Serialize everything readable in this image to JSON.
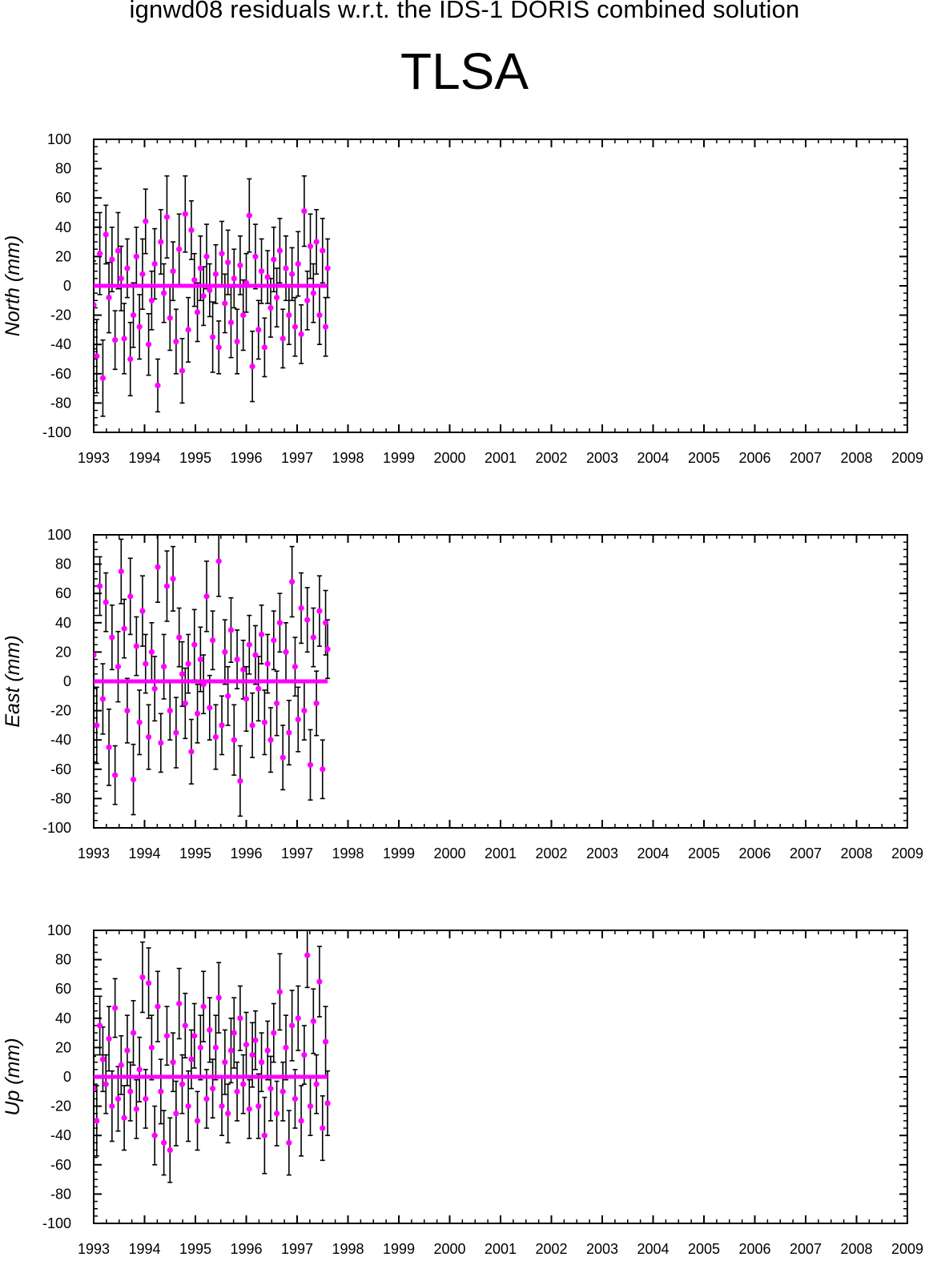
{
  "figure": {
    "title": "ignwd08 residuals w.r.t. the IDS-1 DORIS combined solution",
    "station": "TLSA"
  },
  "style": {
    "point_color": "#ff00ff",
    "errorbar_color": "#000000",
    "axis_color": "#000000",
    "background": "#ffffff"
  },
  "chart_data": [
    {
      "type": "scatter",
      "panel": "north",
      "title": "",
      "xlabel": "",
      "ylabel": "North (mm)",
      "xlim": [
        1993,
        2009
      ],
      "ylim": [
        -100,
        100
      ],
      "x_ticks": [
        1993,
        1994,
        1995,
        1996,
        1997,
        1998,
        1999,
        2000,
        2001,
        2002,
        2003,
        2004,
        2005,
        2006,
        2007,
        2008,
        2009
      ],
      "y_ticks": [
        -100,
        -80,
        -60,
        -40,
        -20,
        0,
        20,
        40,
        60,
        80,
        100
      ],
      "grid": false,
      "legend": "none",
      "series": [
        {
          "x": [
            1993.0,
            1993.06,
            1993.12,
            1993.18,
            1993.24,
            1993.3,
            1993.36,
            1993.42,
            1993.48,
            1993.54,
            1993.6,
            1993.66,
            1993.72,
            1993.78,
            1993.84,
            1993.9,
            1993.96,
            1994.02,
            1994.08,
            1994.14,
            1994.2,
            1994.26,
            1994.32,
            1994.38,
            1994.44,
            1994.5,
            1994.56,
            1994.62,
            1994.68,
            1994.74,
            1994.8,
            1994.86,
            1994.92,
            1994.98,
            1995.04,
            1995.1,
            1995.16,
            1995.22,
            1995.28,
            1995.34,
            1995.4,
            1995.46,
            1995.52,
            1995.58,
            1995.64,
            1995.7,
            1995.76,
            1995.82,
            1995.88,
            1995.94,
            1996.0,
            1996.06,
            1996.12,
            1996.18,
            1996.24,
            1996.3,
            1996.36,
            1996.42,
            1996.48,
            1996.54,
            1996.6,
            1996.66,
            1996.72,
            1996.78,
            1996.84,
            1996.9,
            1996.96,
            1997.02,
            1997.08,
            1997.14,
            1997.2,
            1997.26,
            1997.32,
            1997.38,
            1997.44,
            1997.5,
            1997.56,
            1997.6
          ],
          "y": [
            -13,
            -48,
            22,
            -63,
            35,
            -8,
            18,
            -37,
            24,
            5,
            -36,
            12,
            -50,
            -20,
            20,
            -28,
            8,
            44,
            -40,
            -10,
            15,
            -68,
            30,
            -5,
            47,
            -22,
            10,
            -38,
            25,
            -58,
            49,
            -30,
            38,
            4,
            -18,
            12,
            -7,
            20,
            -3,
            -35,
            8,
            -42,
            22,
            -12,
            16,
            -25,
            5,
            -38,
            14,
            -20,
            2,
            48,
            -55,
            20,
            -30,
            10,
            -42,
            6,
            -15,
            18,
            -8,
            24,
            -36,
            12,
            -20,
            8,
            -28,
            15,
            -33,
            51,
            -10,
            27,
            -5,
            30,
            -20,
            24,
            -28,
            12
          ],
          "err": [
            30,
            25,
            28,
            26,
            20,
            24,
            22,
            20,
            26,
            22,
            24,
            20,
            25,
            22,
            20,
            22,
            24,
            22,
            21,
            20,
            24,
            18,
            22,
            20,
            28,
            22,
            20,
            22,
            24,
            22,
            26,
            22,
            20,
            18,
            20,
            22,
            20,
            22,
            18,
            24,
            20,
            18,
            22,
            20,
            22,
            24,
            20,
            22,
            20,
            24,
            20,
            25,
            24,
            22,
            20,
            22,
            20,
            18,
            20,
            22,
            20,
            22,
            20,
            22,
            20,
            18,
            20,
            22,
            20,
            24,
            20,
            22,
            20,
            22,
            20,
            22,
            20,
            20
          ],
          "mean_line": 0
        }
      ]
    },
    {
      "type": "scatter",
      "panel": "east",
      "title": "",
      "xlabel": "",
      "ylabel": "East (mm)",
      "xlim": [
        1993,
        2009
      ],
      "ylim": [
        -100,
        100
      ],
      "x_ticks": [
        1993,
        1994,
        1995,
        1996,
        1997,
        1998,
        1999,
        2000,
        2001,
        2002,
        2003,
        2004,
        2005,
        2006,
        2007,
        2008,
        2009
      ],
      "y_ticks": [
        -100,
        -80,
        -60,
        -40,
        -20,
        0,
        20,
        40,
        60,
        80,
        100
      ],
      "grid": false,
      "legend": "none",
      "series": [
        {
          "x": [
            1993.0,
            1993.06,
            1993.12,
            1993.18,
            1993.24,
            1993.3,
            1993.36,
            1993.42,
            1993.48,
            1993.54,
            1993.6,
            1993.66,
            1993.72,
            1993.78,
            1993.84,
            1993.9,
            1993.96,
            1994.02,
            1994.08,
            1994.14,
            1994.2,
            1994.26,
            1994.32,
            1994.38,
            1994.44,
            1994.5,
            1994.56,
            1994.62,
            1994.68,
            1994.74,
            1994.8,
            1994.86,
            1994.92,
            1994.98,
            1995.04,
            1995.1,
            1995.16,
            1995.22,
            1995.28,
            1995.34,
            1995.4,
            1995.46,
            1995.52,
            1995.58,
            1995.64,
            1995.7,
            1995.76,
            1995.82,
            1995.88,
            1995.94,
            1996.0,
            1996.06,
            1996.12,
            1996.18,
            1996.24,
            1996.3,
            1996.36,
            1996.42,
            1996.48,
            1996.54,
            1996.6,
            1996.66,
            1996.72,
            1996.78,
            1996.84,
            1996.9,
            1996.96,
            1997.02,
            1997.08,
            1997.14,
            1997.2,
            1997.26,
            1997.32,
            1997.38,
            1997.44,
            1997.5,
            1997.56,
            1997.6
          ],
          "y": [
            18,
            -30,
            65,
            -12,
            54,
            -45,
            30,
            -64,
            10,
            75,
            36,
            -20,
            58,
            -67,
            24,
            -28,
            48,
            12,
            -38,
            20,
            -5,
            78,
            -42,
            10,
            65,
            -20,
            70,
            -35,
            30,
            5,
            -15,
            12,
            -48,
            25,
            -22,
            15,
            -2,
            58,
            -18,
            28,
            -38,
            82,
            -30,
            20,
            -10,
            35,
            -40,
            15,
            -68,
            8,
            -12,
            25,
            -30,
            18,
            -5,
            32,
            -28,
            12,
            -40,
            28,
            -15,
            40,
            -52,
            20,
            -35,
            68,
            10,
            -26,
            50,
            -20,
            42,
            -57,
            30,
            -15,
            48,
            -60,
            40,
            22
          ],
          "err": [
            22,
            26,
            20,
            24,
            20,
            26,
            22,
            20,
            24,
            22,
            20,
            22,
            26,
            24,
            20,
            22,
            24,
            20,
            22,
            20,
            22,
            24,
            20,
            22,
            24,
            20,
            22,
            24,
            20,
            22,
            24,
            20,
            22,
            24,
            20,
            22,
            20,
            24,
            22,
            20,
            22,
            24,
            20,
            22,
            20,
            22,
            24,
            20,
            24,
            20,
            22,
            20,
            22,
            20,
            22,
            20,
            22,
            20,
            22,
            20,
            22,
            20,
            22,
            20,
            22,
            24,
            20,
            22,
            24,
            20,
            22,
            24,
            20,
            22,
            24,
            20,
            22,
            20
          ],
          "mean_line": 0
        }
      ]
    },
    {
      "type": "scatter",
      "panel": "up",
      "title": "",
      "xlabel": "",
      "ylabel": "Up (mm)",
      "xlim": [
        1993,
        2009
      ],
      "ylim": [
        -100,
        100
      ],
      "x_ticks": [
        1993,
        1994,
        1995,
        1996,
        1997,
        1998,
        1999,
        2000,
        2001,
        2002,
        2003,
        2004,
        2005,
        2006,
        2007,
        2008,
        2009
      ],
      "y_ticks": [
        -100,
        -80,
        -60,
        -40,
        -20,
        0,
        20,
        40,
        60,
        80,
        100
      ],
      "grid": false,
      "legend": "none",
      "series": [
        {
          "x": [
            1993.0,
            1993.06,
            1993.12,
            1993.18,
            1993.24,
            1993.3,
            1993.36,
            1993.42,
            1993.48,
            1993.54,
            1993.6,
            1993.66,
            1993.72,
            1993.78,
            1993.84,
            1993.9,
            1993.96,
            1994.02,
            1994.08,
            1994.14,
            1994.2,
            1994.26,
            1994.32,
            1994.38,
            1994.44,
            1994.5,
            1994.56,
            1994.62,
            1994.68,
            1994.74,
            1994.8,
            1994.86,
            1994.92,
            1994.98,
            1995.04,
            1995.1,
            1995.16,
            1995.22,
            1995.28,
            1995.34,
            1995.4,
            1995.46,
            1995.52,
            1995.58,
            1995.64,
            1995.7,
            1995.76,
            1995.82,
            1995.88,
            1995.94,
            1996.0,
            1996.06,
            1996.12,
            1996.18,
            1996.24,
            1996.3,
            1996.36,
            1996.42,
            1996.48,
            1996.54,
            1996.6,
            1996.66,
            1996.72,
            1996.78,
            1996.84,
            1996.9,
            1996.96,
            1997.02,
            1997.08,
            1997.14,
            1997.2,
            1997.26,
            1997.32,
            1997.38,
            1997.44,
            1997.5,
            1997.56,
            1997.6
          ],
          "y": [
            -8,
            -30,
            35,
            12,
            -5,
            26,
            -20,
            47,
            -15,
            8,
            -28,
            18,
            -10,
            30,
            -22,
            5,
            68,
            -15,
            64,
            20,
            -40,
            48,
            -10,
            -45,
            28,
            -50,
            10,
            -25,
            50,
            -5,
            35,
            -20,
            12,
            28,
            -30,
            20,
            48,
            -15,
            32,
            -8,
            20,
            54,
            -20,
            10,
            -25,
            18,
            30,
            -10,
            40,
            -5,
            22,
            -22,
            15,
            25,
            -20,
            10,
            -40,
            18,
            -8,
            30,
            -25,
            58,
            -10,
            20,
            -45,
            35,
            -15,
            40,
            -30,
            15,
            83,
            -20,
            38,
            -5,
            65,
            -35,
            24,
            -18
          ],
          "err": [
            22,
            24,
            20,
            22,
            20,
            22,
            24,
            20,
            22,
            20,
            22,
            24,
            20,
            22,
            20,
            22,
            24,
            20,
            24,
            22,
            20,
            24,
            22,
            22,
            20,
            22,
            20,
            22,
            24,
            20,
            22,
            24,
            20,
            22,
            20,
            22,
            24,
            20,
            22,
            20,
            22,
            24,
            20,
            22,
            20,
            22,
            24,
            20,
            22,
            20,
            22,
            20,
            22,
            20,
            22,
            20,
            26,
            20,
            22,
            20,
            22,
            26,
            20,
            22,
            22,
            24,
            20,
            22,
            24,
            20,
            22,
            20,
            22,
            20,
            24,
            22,
            24,
            22
          ],
          "mean_line": 0
        }
      ]
    }
  ]
}
